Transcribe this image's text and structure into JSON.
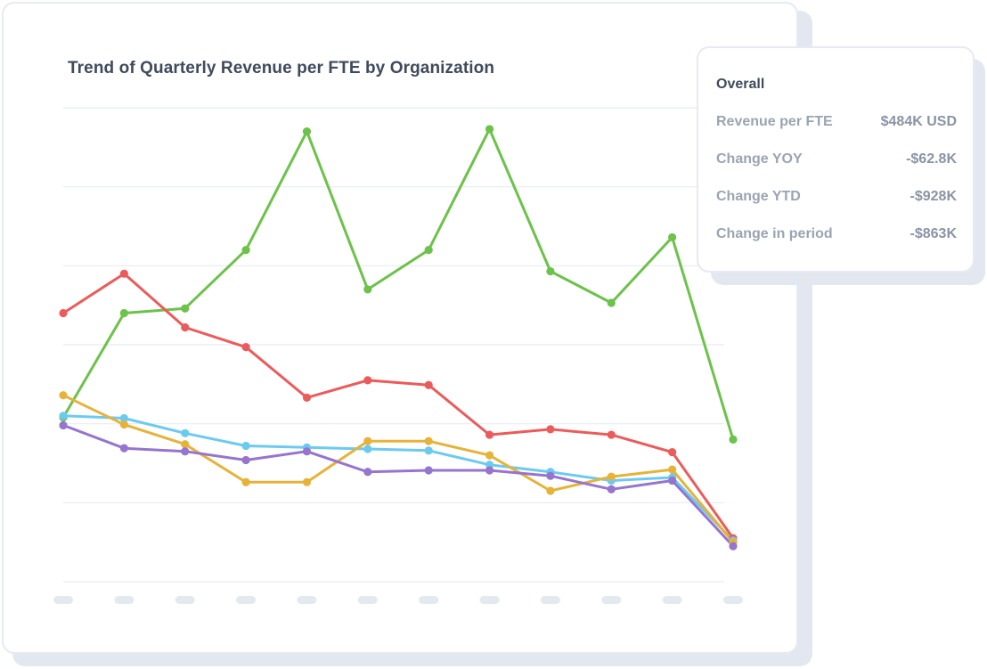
{
  "chart_data": {
    "type": "line",
    "title": "Trend of Quarterly Revenue per FTE by Organization",
    "xlabel": "",
    "ylabel": "",
    "categories": [
      "",
      "",
      "",
      "",
      "",
      "",
      "",
      "",
      "",
      "",
      "",
      ""
    ],
    "ylim": [
      0,
      6
    ],
    "grid": true,
    "legend": "none",
    "series": [
      {
        "name": "Green",
        "color": "#6cc24a",
        "values": [
          2.08,
          3.4,
          3.46,
          4.2,
          5.7,
          3.7,
          4.2,
          5.73,
          3.93,
          3.53,
          4.36,
          1.8
        ]
      },
      {
        "name": "Red",
        "color": "#ec5b5b",
        "values": [
          3.4,
          3.9,
          3.22,
          2.97,
          2.33,
          2.55,
          2.49,
          1.86,
          1.93,
          1.86,
          1.64,
          0.55
        ]
      },
      {
        "name": "Blue",
        "color": "#6ccaf1",
        "values": [
          2.1,
          2.07,
          1.88,
          1.72,
          1.7,
          1.68,
          1.66,
          1.48,
          1.39,
          1.28,
          1.32,
          0.52
        ]
      },
      {
        "name": "Yellow",
        "color": "#e6b33a",
        "values": [
          2.36,
          1.99,
          1.74,
          1.26,
          1.26,
          1.78,
          1.78,
          1.6,
          1.15,
          1.33,
          1.42,
          0.5
        ]
      },
      {
        "name": "Purple",
        "color": "#9575cd",
        "values": [
          1.98,
          1.69,
          1.65,
          1.54,
          1.65,
          1.39,
          1.41,
          1.41,
          1.34,
          1.17,
          1.28,
          0.45
        ]
      }
    ]
  },
  "tooltip": {
    "title": "Overall",
    "rows": [
      {
        "label": "Revenue per FTE",
        "value": "$484K USD"
      },
      {
        "label": "Change YOY",
        "value": "-$62.8K"
      },
      {
        "label": "Change YTD",
        "value": "-$928K"
      },
      {
        "label": "Change in period",
        "value": "-$863K"
      }
    ]
  }
}
